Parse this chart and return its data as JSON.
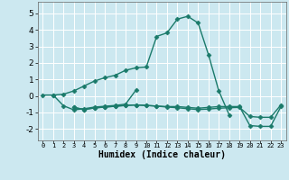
{
  "xlabel": "Humidex (Indice chaleur)",
  "xlim": [
    -0.5,
    23.5
  ],
  "ylim": [
    -2.7,
    5.7
  ],
  "yticks": [
    -2,
    -1,
    0,
    1,
    2,
    3,
    4,
    5
  ],
  "xticks": [
    0,
    1,
    2,
    3,
    4,
    5,
    6,
    7,
    8,
    9,
    10,
    11,
    12,
    13,
    14,
    15,
    16,
    17,
    18,
    19,
    20,
    21,
    22,
    23
  ],
  "bg_color": "#cce8f0",
  "grid_color": "#ffffff",
  "line_color": "#1a7a6a",
  "lines": [
    {
      "x": [
        0,
        1,
        2,
        3,
        4,
        5,
        6,
        7,
        8,
        9,
        10,
        11,
        12,
        13,
        14,
        15,
        16,
        17,
        18
      ],
      "y": [
        0.05,
        0.05,
        0.1,
        0.3,
        0.6,
        0.9,
        1.1,
        1.25,
        1.55,
        1.7,
        1.75,
        3.6,
        3.82,
        4.65,
        4.82,
        4.42,
        2.5,
        0.3,
        -1.15
      ]
    },
    {
      "x": [
        1,
        2,
        3,
        4,
        5,
        6,
        7,
        8,
        9
      ],
      "y": [
        0.05,
        -0.6,
        -0.85,
        -0.78,
        -0.68,
        -0.63,
        -0.58,
        -0.5,
        0.35
      ]
    },
    {
      "x": [
        3,
        4,
        5,
        6,
        7,
        8,
        9,
        10,
        11,
        12,
        13,
        14,
        15,
        16,
        17,
        18,
        19,
        20,
        21,
        22,
        23
      ],
      "y": [
        -0.7,
        -0.83,
        -0.73,
        -0.68,
        -0.63,
        -0.58,
        -0.55,
        -0.58,
        -0.62,
        -0.65,
        -0.65,
        -0.7,
        -0.75,
        -0.7,
        -0.65,
        -0.65,
        -0.65,
        -1.8,
        -1.85,
        -1.85,
        -0.65
      ]
    },
    {
      "x": [
        3,
        4,
        5,
        6,
        7,
        8,
        9,
        10,
        11,
        12,
        13,
        14,
        15,
        16,
        17,
        18,
        19,
        20,
        21,
        22,
        23
      ],
      "y": [
        -0.7,
        -0.83,
        -0.73,
        -0.68,
        -0.63,
        -0.58,
        -0.55,
        -0.58,
        -0.62,
        -0.68,
        -0.72,
        -0.78,
        -0.83,
        -0.8,
        -0.75,
        -0.72,
        -0.7,
        -1.25,
        -1.3,
        -1.3,
        -0.55
      ]
    }
  ],
  "marker": "D",
  "markersize": 2.5,
  "linewidth": 1.0
}
